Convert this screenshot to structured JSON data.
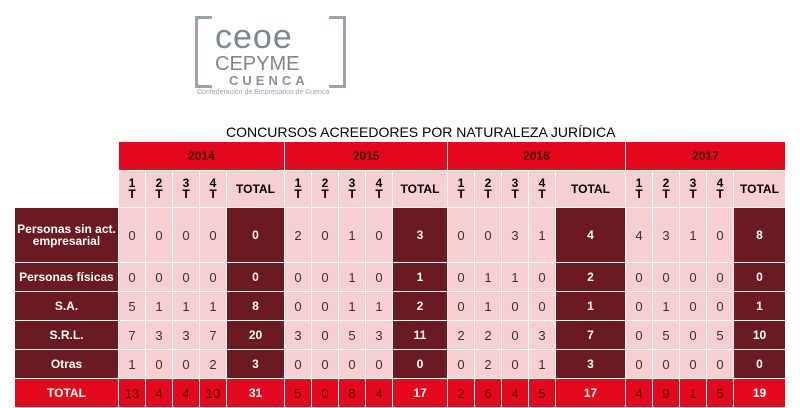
{
  "logo": {
    "line1": "ceoe",
    "line2": "CEPYME",
    "line3": "CUENCA",
    "tagline": "Confederación de Empresarios de Cuenca"
  },
  "title": "CONCURSOS ACREEDORES POR NATURALEZA JURÍDICA",
  "years": [
    "2014",
    "2015",
    "2016",
    "2017"
  ],
  "quarter_headers": [
    "1\nT",
    "2\nT",
    "3\nT",
    "4\nT"
  ],
  "total_header": "TOTAL",
  "rows": [
    {
      "label": "Personas sin act. empresarial",
      "values": [
        [
          "0",
          "0",
          "0",
          "0",
          "0"
        ],
        [
          "2",
          "0",
          "1",
          "0",
          "3"
        ],
        [
          "0",
          "0",
          "3",
          "1",
          "4"
        ],
        [
          "4",
          "3",
          "1",
          "0",
          "8"
        ]
      ]
    },
    {
      "label": "Personas físicas",
      "values": [
        [
          "0",
          "0",
          "0",
          "0",
          "0"
        ],
        [
          "0",
          "0",
          "1",
          "0",
          "1"
        ],
        [
          "0",
          "1",
          "1",
          "0",
          "2"
        ],
        [
          "0",
          "0",
          "0",
          "0",
          "0"
        ]
      ]
    },
    {
      "label": "S.A.",
      "values": [
        [
          "5",
          "1",
          "1",
          "1",
          "8"
        ],
        [
          "0",
          "0",
          "1",
          "1",
          "2"
        ],
        [
          "0",
          "1",
          "0",
          "0",
          "1"
        ],
        [
          "0",
          "1",
          "0",
          "0",
          "1"
        ]
      ]
    },
    {
      "label": "S.R.L.",
      "values": [
        [
          "7",
          "3",
          "3",
          "7",
          "20"
        ],
        [
          "3",
          "0",
          "5",
          "3",
          "11"
        ],
        [
          "2",
          "2",
          "0",
          "3",
          "7"
        ],
        [
          "0",
          "5",
          "0",
          "5",
          "10"
        ]
      ]
    },
    {
      "label": "Otras",
      "values": [
        [
          "1",
          "0",
          "0",
          "2",
          "3"
        ],
        [
          "0",
          "0",
          "0",
          "0",
          "0"
        ],
        [
          "0",
          "2",
          "0",
          "1",
          "3"
        ],
        [
          "0",
          "0",
          "0",
          "0",
          "0"
        ]
      ]
    },
    {
      "label": "TOTAL",
      "values": [
        [
          "13",
          "4",
          "4",
          "10",
          "31"
        ],
        [
          "5",
          "0",
          "8",
          "4",
          "17"
        ],
        [
          "2",
          "6",
          "4",
          "5",
          "17"
        ],
        [
          "4",
          "9",
          "1",
          "5",
          "19"
        ]
      ]
    }
  ],
  "colors": {
    "red": "#e3081d",
    "dark": "#6b1a21",
    "pink": "#f7cfd3"
  }
}
